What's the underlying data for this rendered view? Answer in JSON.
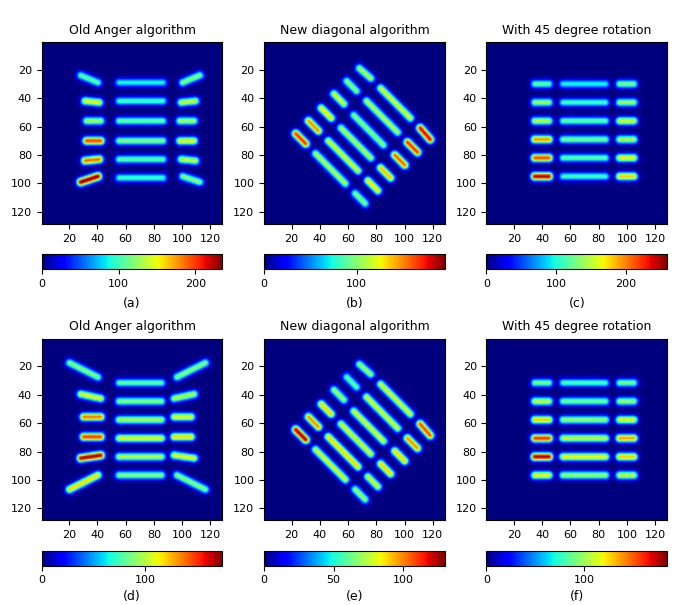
{
  "chart_data": [
    {
      "type": "heatmap",
      "title": "Old Anger algorithm",
      "caption": "(a)",
      "xlim": [
        0.5,
        128.5
      ],
      "ylim": [
        128.5,
        0.5
      ],
      "xticks": [
        20,
        40,
        60,
        80,
        100,
        120
      ],
      "yticks": [
        20,
        40,
        60,
        80,
        100,
        120
      ],
      "color_range": [
        0,
        235
      ],
      "color_ticks": [
        0,
        100,
        200
      ],
      "spots": [
        {
          "x1": 28,
          "y1": 24,
          "x2": 40,
          "y2": 29,
          "value": 110
        },
        {
          "x1": 31,
          "y1": 42,
          "x2": 41,
          "y2": 43,
          "value": 150
        },
        {
          "x1": 32,
          "y1": 56,
          "x2": 42,
          "y2": 56,
          "value": 130
        },
        {
          "x1": 32,
          "y1": 70,
          "x2": 42,
          "y2": 70,
          "value": 200
        },
        {
          "x1": 31,
          "y1": 84,
          "x2": 41,
          "y2": 83,
          "value": 190
        },
        {
          "x1": 28,
          "y1": 99,
          "x2": 40,
          "y2": 95,
          "value": 235
        },
        {
          "x1": 55,
          "y1": 29,
          "x2": 86,
          "y2": 29,
          "value": 90
        },
        {
          "x1": 55,
          "y1": 42,
          "x2": 86,
          "y2": 42,
          "value": 100
        },
        {
          "x1": 55,
          "y1": 56,
          "x2": 86,
          "y2": 56,
          "value": 110
        },
        {
          "x1": 55,
          "y1": 70,
          "x2": 86,
          "y2": 70,
          "value": 120
        },
        {
          "x1": 55,
          "y1": 83,
          "x2": 86,
          "y2": 83,
          "value": 110
        },
        {
          "x1": 55,
          "y1": 96,
          "x2": 86,
          "y2": 96,
          "value": 100
        },
        {
          "x1": 100,
          "y1": 29,
          "x2": 112,
          "y2": 24,
          "value": 120
        },
        {
          "x1": 99,
          "y1": 43,
          "x2": 109,
          "y2": 42,
          "value": 140
        },
        {
          "x1": 98,
          "y1": 56,
          "x2": 108,
          "y2": 56,
          "value": 130
        },
        {
          "x1": 98,
          "y1": 70,
          "x2": 108,
          "y2": 70,
          "value": 150
        },
        {
          "x1": 99,
          "y1": 83,
          "x2": 109,
          "y2": 84,
          "value": 140
        },
        {
          "x1": 100,
          "y1": 95,
          "x2": 112,
          "y2": 99,
          "value": 120
        }
      ]
    },
    {
      "type": "heatmap",
      "title": "New diagonal algorithm",
      "caption": "(b)",
      "xlim": [
        0.5,
        128.5
      ],
      "ylim": [
        128.5,
        0.5
      ],
      "xticks": [
        20,
        40,
        60,
        80,
        100,
        120
      ],
      "yticks": [
        20,
        40,
        60,
        80,
        100,
        120
      ],
      "color_range": [
        0,
        195
      ],
      "color_ticks": [
        0,
        100
      ],
      "spots": [
        {
          "x1": 68,
          "y1": 19,
          "x2": 76,
          "y2": 26,
          "value": 110
        },
        {
          "x1": 83,
          "y1": 33,
          "x2": 104,
          "y2": 54,
          "value": 120
        },
        {
          "x1": 111,
          "y1": 61,
          "x2": 118,
          "y2": 69,
          "value": 180
        },
        {
          "x1": 59,
          "y1": 28,
          "x2": 66,
          "y2": 35,
          "value": 100
        },
        {
          "x1": 73,
          "y1": 42,
          "x2": 95,
          "y2": 64,
          "value": 110
        },
        {
          "x1": 102,
          "y1": 71,
          "x2": 109,
          "y2": 78,
          "value": 170
        },
        {
          "x1": 50,
          "y1": 37,
          "x2": 57,
          "y2": 44,
          "value": 120
        },
        {
          "x1": 64,
          "y1": 52,
          "x2": 85,
          "y2": 73,
          "value": 100
        },
        {
          "x1": 93,
          "y1": 80,
          "x2": 100,
          "y2": 87,
          "value": 160
        },
        {
          "x1": 41,
          "y1": 47,
          "x2": 48,
          "y2": 54,
          "value": 130
        },
        {
          "x1": 55,
          "y1": 61,
          "x2": 76,
          "y2": 82,
          "value": 110
        },
        {
          "x1": 83,
          "y1": 89,
          "x2": 90,
          "y2": 96,
          "value": 140
        },
        {
          "x1": 32,
          "y1": 56,
          "x2": 39,
          "y2": 63,
          "value": 150
        },
        {
          "x1": 46,
          "y1": 70,
          "x2": 67,
          "y2": 91,
          "value": 120
        },
        {
          "x1": 74,
          "y1": 98,
          "x2": 81,
          "y2": 105,
          "value": 130
        },
        {
          "x1": 23,
          "y1": 65,
          "x2": 30,
          "y2": 72,
          "value": 170
        },
        {
          "x1": 37,
          "y1": 79,
          "x2": 58,
          "y2": 100,
          "value": 110
        },
        {
          "x1": 65,
          "y1": 107,
          "x2": 72,
          "y2": 114,
          "value": 100
        }
      ]
    },
    {
      "type": "heatmap",
      "title": "With 45 degree rotation",
      "caption": "(c)",
      "xlim": [
        0.5,
        128.5
      ],
      "ylim": [
        128.5,
        0.5
      ],
      "xticks": [
        20,
        40,
        60,
        80,
        100,
        120
      ],
      "yticks": [
        20,
        40,
        60,
        80,
        100,
        120
      ],
      "color_range": [
        0,
        260
      ],
      "color_ticks": [
        0,
        100,
        200
      ],
      "spots": [
        {
          "x1": 35,
          "y1": 30,
          "x2": 45,
          "y2": 30,
          "value": 120
        },
        {
          "x1": 35,
          "y1": 43,
          "x2": 45,
          "y2": 43,
          "value": 140
        },
        {
          "x1": 35,
          "y1": 56,
          "x2": 45,
          "y2": 56,
          "value": 150
        },
        {
          "x1": 35,
          "y1": 69,
          "x2": 45,
          "y2": 69,
          "value": 200
        },
        {
          "x1": 35,
          "y1": 82,
          "x2": 45,
          "y2": 82,
          "value": 220
        },
        {
          "x1": 35,
          "y1": 95,
          "x2": 45,
          "y2": 95,
          "value": 250
        },
        {
          "x1": 55,
          "y1": 30,
          "x2": 85,
          "y2": 30,
          "value": 100
        },
        {
          "x1": 55,
          "y1": 43,
          "x2": 85,
          "y2": 43,
          "value": 110
        },
        {
          "x1": 55,
          "y1": 56,
          "x2": 85,
          "y2": 56,
          "value": 120
        },
        {
          "x1": 55,
          "y1": 69,
          "x2": 85,
          "y2": 69,
          "value": 130
        },
        {
          "x1": 55,
          "y1": 82,
          "x2": 85,
          "y2": 82,
          "value": 120
        },
        {
          "x1": 55,
          "y1": 95,
          "x2": 85,
          "y2": 95,
          "value": 110
        },
        {
          "x1": 95,
          "y1": 30,
          "x2": 105,
          "y2": 30,
          "value": 130
        },
        {
          "x1": 95,
          "y1": 43,
          "x2": 105,
          "y2": 43,
          "value": 140
        },
        {
          "x1": 95,
          "y1": 56,
          "x2": 105,
          "y2": 56,
          "value": 160
        },
        {
          "x1": 95,
          "y1": 69,
          "x2": 105,
          "y2": 69,
          "value": 150
        },
        {
          "x1": 95,
          "y1": 82,
          "x2": 105,
          "y2": 82,
          "value": 170
        },
        {
          "x1": 95,
          "y1": 95,
          "x2": 105,
          "y2": 95,
          "value": 180
        }
      ]
    },
    {
      "type": "heatmap",
      "title": "Old Anger algorithm",
      "caption": "(d)",
      "xlim": [
        0.5,
        128.5
      ],
      "ylim": [
        128.5,
        0.5
      ],
      "xticks": [
        20,
        40,
        60,
        80,
        100,
        120
      ],
      "yticks": [
        20,
        40,
        60,
        80,
        100,
        120
      ],
      "color_range": [
        0,
        175
      ],
      "color_ticks": [
        0,
        100
      ],
      "spots": [
        {
          "x1": 20,
          "y1": 18,
          "x2": 40,
          "y2": 28,
          "value": 90
        },
        {
          "x1": 28,
          "y1": 40,
          "x2": 42,
          "y2": 43,
          "value": 110
        },
        {
          "x1": 30,
          "y1": 56,
          "x2": 42,
          "y2": 56,
          "value": 140
        },
        {
          "x1": 30,
          "y1": 70,
          "x2": 42,
          "y2": 70,
          "value": 150
        },
        {
          "x1": 28,
          "y1": 85,
          "x2": 42,
          "y2": 83,
          "value": 170
        },
        {
          "x1": 20,
          "y1": 107,
          "x2": 40,
          "y2": 97,
          "value": 120
        },
        {
          "x1": 55,
          "y1": 32,
          "x2": 85,
          "y2": 32,
          "value": 80
        },
        {
          "x1": 55,
          "y1": 45,
          "x2": 85,
          "y2": 45,
          "value": 90
        },
        {
          "x1": 55,
          "y1": 58,
          "x2": 85,
          "y2": 58,
          "value": 100
        },
        {
          "x1": 55,
          "y1": 71,
          "x2": 85,
          "y2": 71,
          "value": 110
        },
        {
          "x1": 55,
          "y1": 84,
          "x2": 85,
          "y2": 84,
          "value": 100
        },
        {
          "x1": 55,
          "y1": 97,
          "x2": 85,
          "y2": 97,
          "value": 90
        },
        {
          "x1": 96,
          "y1": 28,
          "x2": 116,
          "y2": 18,
          "value": 90
        },
        {
          "x1": 94,
          "y1": 43,
          "x2": 108,
          "y2": 40,
          "value": 100
        },
        {
          "x1": 94,
          "y1": 56,
          "x2": 106,
          "y2": 56,
          "value": 110
        },
        {
          "x1": 94,
          "y1": 70,
          "x2": 106,
          "y2": 70,
          "value": 120
        },
        {
          "x1": 94,
          "y1": 83,
          "x2": 108,
          "y2": 85,
          "value": 110
        },
        {
          "x1": 96,
          "y1": 97,
          "x2": 116,
          "y2": 107,
          "value": 90
        }
      ]
    },
    {
      "type": "heatmap",
      "title": "New diagonal algorithm",
      "caption": "(e)",
      "xlim": [
        0.5,
        128.5
      ],
      "ylim": [
        128.5,
        0.5
      ],
      "xticks": [
        20,
        40,
        60,
        80,
        100,
        120
      ],
      "yticks": [
        20,
        40,
        60,
        80,
        100,
        120
      ],
      "color_range": [
        0,
        130
      ],
      "color_ticks": [
        0,
        50,
        100
      ],
      "spots": [
        {
          "x1": 68,
          "y1": 19,
          "x2": 76,
          "y2": 26,
          "value": 70
        },
        {
          "x1": 83,
          "y1": 33,
          "x2": 104,
          "y2": 54,
          "value": 80
        },
        {
          "x1": 111,
          "y1": 61,
          "x2": 118,
          "y2": 69,
          "value": 110
        },
        {
          "x1": 59,
          "y1": 28,
          "x2": 66,
          "y2": 35,
          "value": 60
        },
        {
          "x1": 73,
          "y1": 42,
          "x2": 95,
          "y2": 64,
          "value": 80
        },
        {
          "x1": 102,
          "y1": 71,
          "x2": 109,
          "y2": 78,
          "value": 100
        },
        {
          "x1": 50,
          "y1": 37,
          "x2": 57,
          "y2": 44,
          "value": 70
        },
        {
          "x1": 64,
          "y1": 52,
          "x2": 85,
          "y2": 73,
          "value": 80
        },
        {
          "x1": 93,
          "y1": 80,
          "x2": 100,
          "y2": 87,
          "value": 90
        },
        {
          "x1": 41,
          "y1": 47,
          "x2": 48,
          "y2": 54,
          "value": 90
        },
        {
          "x1": 55,
          "y1": 61,
          "x2": 76,
          "y2": 82,
          "value": 80
        },
        {
          "x1": 83,
          "y1": 89,
          "x2": 90,
          "y2": 96,
          "value": 90
        },
        {
          "x1": 32,
          "y1": 56,
          "x2": 39,
          "y2": 63,
          "value": 100
        },
        {
          "x1": 46,
          "y1": 70,
          "x2": 67,
          "y2": 91,
          "value": 90
        },
        {
          "x1": 74,
          "y1": 98,
          "x2": 81,
          "y2": 105,
          "value": 80
        },
        {
          "x1": 23,
          "y1": 65,
          "x2": 30,
          "y2": 72,
          "value": 125
        },
        {
          "x1": 37,
          "y1": 79,
          "x2": 58,
          "y2": 100,
          "value": 80
        },
        {
          "x1": 65,
          "y1": 107,
          "x2": 72,
          "y2": 114,
          "value": 70
        }
      ]
    },
    {
      "type": "heatmap",
      "title": "With 45 degree rotation",
      "caption": "(f)",
      "xlim": [
        0.5,
        128.5
      ],
      "ylim": [
        128.5,
        0.5
      ],
      "xticks": [
        20,
        40,
        60,
        80,
        100,
        120
      ],
      "yticks": [
        20,
        40,
        60,
        80,
        100,
        120
      ],
      "color_range": [
        0,
        185
      ],
      "color_ticks": [
        0,
        100
      ],
      "spots": [
        {
          "x1": 35,
          "y1": 32,
          "x2": 45,
          "y2": 32,
          "value": 90
        },
        {
          "x1": 35,
          "y1": 45,
          "x2": 45,
          "y2": 45,
          "value": 110
        },
        {
          "x1": 35,
          "y1": 58,
          "x2": 45,
          "y2": 58,
          "value": 130
        },
        {
          "x1": 35,
          "y1": 71,
          "x2": 45,
          "y2": 71,
          "value": 160
        },
        {
          "x1": 35,
          "y1": 84,
          "x2": 45,
          "y2": 84,
          "value": 180
        },
        {
          "x1": 35,
          "y1": 97,
          "x2": 45,
          "y2": 97,
          "value": 120
        },
        {
          "x1": 55,
          "y1": 32,
          "x2": 85,
          "y2": 32,
          "value": 80
        },
        {
          "x1": 55,
          "y1": 45,
          "x2": 85,
          "y2": 45,
          "value": 90
        },
        {
          "x1": 55,
          "y1": 58,
          "x2": 85,
          "y2": 58,
          "value": 100
        },
        {
          "x1": 55,
          "y1": 71,
          "x2": 85,
          "y2": 71,
          "value": 110
        },
        {
          "x1": 55,
          "y1": 84,
          "x2": 85,
          "y2": 84,
          "value": 120
        },
        {
          "x1": 55,
          "y1": 97,
          "x2": 85,
          "y2": 97,
          "value": 100
        },
        {
          "x1": 95,
          "y1": 32,
          "x2": 105,
          "y2": 32,
          "value": 90
        },
        {
          "x1": 95,
          "y1": 45,
          "x2": 105,
          "y2": 45,
          "value": 100
        },
        {
          "x1": 95,
          "y1": 58,
          "x2": 105,
          "y2": 58,
          "value": 120
        },
        {
          "x1": 95,
          "y1": 71,
          "x2": 105,
          "y2": 71,
          "value": 140
        },
        {
          "x1": 95,
          "y1": 84,
          "x2": 105,
          "y2": 84,
          "value": 130
        },
        {
          "x1": 95,
          "y1": 97,
          "x2": 105,
          "y2": 97,
          "value": 110
        }
      ]
    }
  ]
}
